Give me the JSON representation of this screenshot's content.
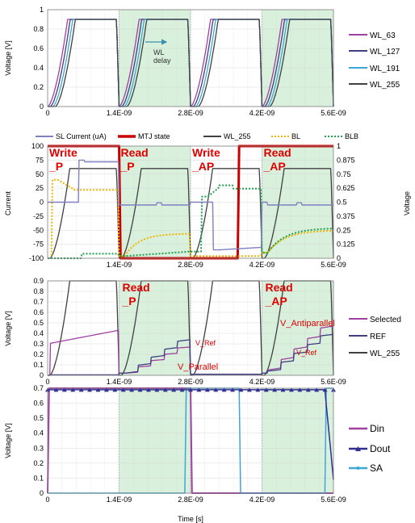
{
  "colors": {
    "wl63": "#a040a0",
    "wl127": "#404080",
    "wl191": "#3fa7d6",
    "wl255": "#404040",
    "sl_current": "#8080c0",
    "mtj": "#cc0000",
    "bl": "#f0b400",
    "blb": "#20a050",
    "selected": "#a040a0",
    "ref": "#404080",
    "din": "#a040a0",
    "dout": "#303090",
    "sa": "#3fa7d6",
    "label_red": "#e00000",
    "shade": "#d8f0dc",
    "arrow": "#3c8fb0"
  },
  "chart_data": [
    {
      "type": "line",
      "ylabel": "Voltage [V]",
      "ylim": [
        0,
        1
      ],
      "yticks": [
        "0",
        "0.2",
        "0.4",
        "0.6",
        "0.8",
        "1"
      ],
      "xticks": [
        "0",
        "1.4E-09",
        "2.8E-09",
        "4.2E-09",
        "5.6E-09"
      ],
      "xlim": [
        0,
        5.6e-09
      ],
      "grid": true,
      "legend_position": "right",
      "series": [
        {
          "name": "WL_63",
          "high": 0.9,
          "rise_delay": 0.0
        },
        {
          "name": "WL_127",
          "high": 0.9,
          "rise_delay": 5e-11
        },
        {
          "name": "WL_191",
          "high": 0.9,
          "rise_delay": 1e-10
        },
        {
          "name": "WL_255",
          "high": 0.9,
          "rise_delay": 1.5e-10
        }
      ],
      "annotation": "WL\ndelay"
    },
    {
      "type": "line",
      "ylabel": "Current",
      "ylabel_right": "Voltage",
      "ylim": [
        -100,
        100
      ],
      "ylim_right": [
        0,
        1
      ],
      "yticks": [
        "100",
        "75",
        "50",
        "25",
        "0",
        "-25",
        "-50",
        "-75",
        "-100"
      ],
      "yticks_right": [
        "1",
        "0.875",
        "0.75",
        "0.625",
        "0.5",
        "0.375",
        "0.25",
        "0.125",
        "0"
      ],
      "xticks": [
        "1.4E-09",
        "2.8E-09",
        "4.2E-09",
        "5.6E-09"
      ],
      "xlim": [
        0,
        5.6e-09
      ],
      "grid": true,
      "legend_position": "top",
      "legend": [
        "SL Current (uA)",
        "MTJ state",
        "WL_255",
        "BL",
        "BLB"
      ],
      "annotations": [
        "Write\n_P",
        "Read\n_P",
        "Write\n_AP",
        "Read\n_AP"
      ]
    },
    {
      "type": "line",
      "ylabel": "Voltage [V]",
      "ylim": [
        0,
        0.9
      ],
      "yticks": [
        "0",
        "0.1",
        "0.2",
        "0.3",
        "0.4",
        "0.5",
        "0.6",
        "0.7",
        "0.8",
        "0.9"
      ],
      "xticks": [
        "0",
        "1.4E-09",
        "2.8E-09",
        "4.2E-09",
        "5.6E-09"
      ],
      "xlim": [
        0,
        5.6e-09
      ],
      "grid": true,
      "legend_position": "right",
      "legend": [
        "Selected",
        "REF",
        "WL_255"
      ],
      "annotations": [
        "Read\n_P",
        "Read\n_AP",
        "V_Ref",
        "V_Parallel",
        "V_Antiparallel",
        "V_Ref"
      ]
    },
    {
      "type": "line",
      "ylabel": "Voltage [V]",
      "xlabel": "Time [s]",
      "ylim": [
        0,
        0.7
      ],
      "yticks": [
        "0",
        "0.1",
        "0.2",
        "0.3",
        "0.4",
        "0.5",
        "0.6",
        "0.7"
      ],
      "xticks": [
        "0",
        "1.4E-09",
        "2.8E-09",
        "4.2E-09",
        "5.6E-09"
      ],
      "xlim": [
        0,
        5.6e-09
      ],
      "grid": true,
      "legend_position": "right",
      "legend": [
        "Din",
        "Dout",
        "SA"
      ]
    }
  ]
}
